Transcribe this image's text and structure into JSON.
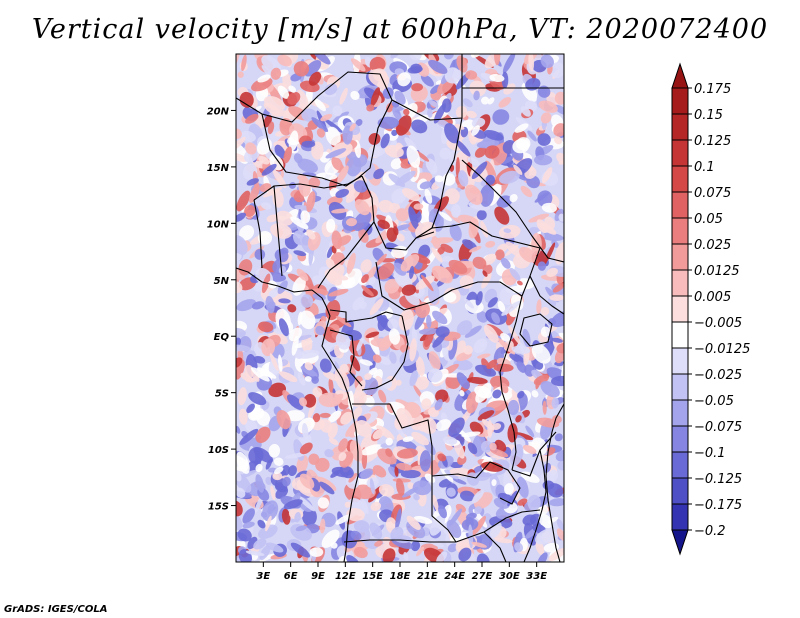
{
  "title": "Vertical velocity [m/s] at 600hPa, VT: 2020072400",
  "credit": "GrADS: IGES/COLA",
  "map": {
    "lon_range": [
      0,
      36
    ],
    "lat_range": [
      -20,
      25
    ],
    "lat_ticks": [
      {
        "value": 20,
        "label": "20N"
      },
      {
        "value": 15,
        "label": "15N"
      },
      {
        "value": 10,
        "label": "10N"
      },
      {
        "value": 5,
        "label": "5N"
      },
      {
        "value": 0,
        "label": "EQ"
      },
      {
        "value": -5,
        "label": "5S"
      },
      {
        "value": -10,
        "label": "10S"
      },
      {
        "value": -15,
        "label": "15S"
      }
    ],
    "lon_ticks": [
      {
        "value": 3,
        "label": "3E"
      },
      {
        "value": 6,
        "label": "6E"
      },
      {
        "value": 9,
        "label": "9E"
      },
      {
        "value": 12,
        "label": "12E"
      },
      {
        "value": 15,
        "label": "15E"
      },
      {
        "value": 18,
        "label": "18E"
      },
      {
        "value": 21,
        "label": "21E"
      },
      {
        "value": 24,
        "label": "24E"
      },
      {
        "value": 27,
        "label": "27E"
      },
      {
        "value": 30,
        "label": "30E"
      },
      {
        "value": 33,
        "label": "33E"
      }
    ]
  },
  "colorbar": {
    "levels": [
      {
        "label": "0.175",
        "color": "#a61c1c"
      },
      {
        "label": "0.15",
        "color": "#b52626"
      },
      {
        "label": "0.125",
        "color": "#c53535"
      },
      {
        "label": "0.1",
        "color": "#d44848"
      },
      {
        "label": "0.075",
        "color": "#e06262"
      },
      {
        "label": "0.05",
        "color": "#ea7e7e"
      },
      {
        "label": "0.025",
        "color": "#f29b9b"
      },
      {
        "label": "0.0125",
        "color": "#f8bcbc"
      },
      {
        "label": "0.005",
        "color": "#fcdede"
      },
      {
        "label": "−0.005",
        "color": "#ffffff"
      },
      {
        "label": "−0.0125",
        "color": "#dedefa"
      },
      {
        "label": "−0.025",
        "color": "#c2c2f4"
      },
      {
        "label": "−0.05",
        "color": "#a4a4ec"
      },
      {
        "label": "−0.075",
        "color": "#8686e2"
      },
      {
        "label": "−0.1",
        "color": "#6a6ad6"
      },
      {
        "label": "−0.125",
        "color": "#4f4fc6"
      },
      {
        "label": "−0.175",
        "color": "#3434b2"
      },
      {
        "label": "−0.2",
        "color": "#22229c"
      }
    ],
    "top_color": "#961414",
    "bottom_color": "#16168c"
  },
  "field_colors": {
    "positive": [
      "#fcdede",
      "#f8bcbc",
      "#f29b9b",
      "#ea7e7e",
      "#e06262",
      "#c53535"
    ],
    "negative": [
      "#dedefa",
      "#c2c2f4",
      "#a4a4ec",
      "#8686e2",
      "#6a6ad6"
    ]
  }
}
